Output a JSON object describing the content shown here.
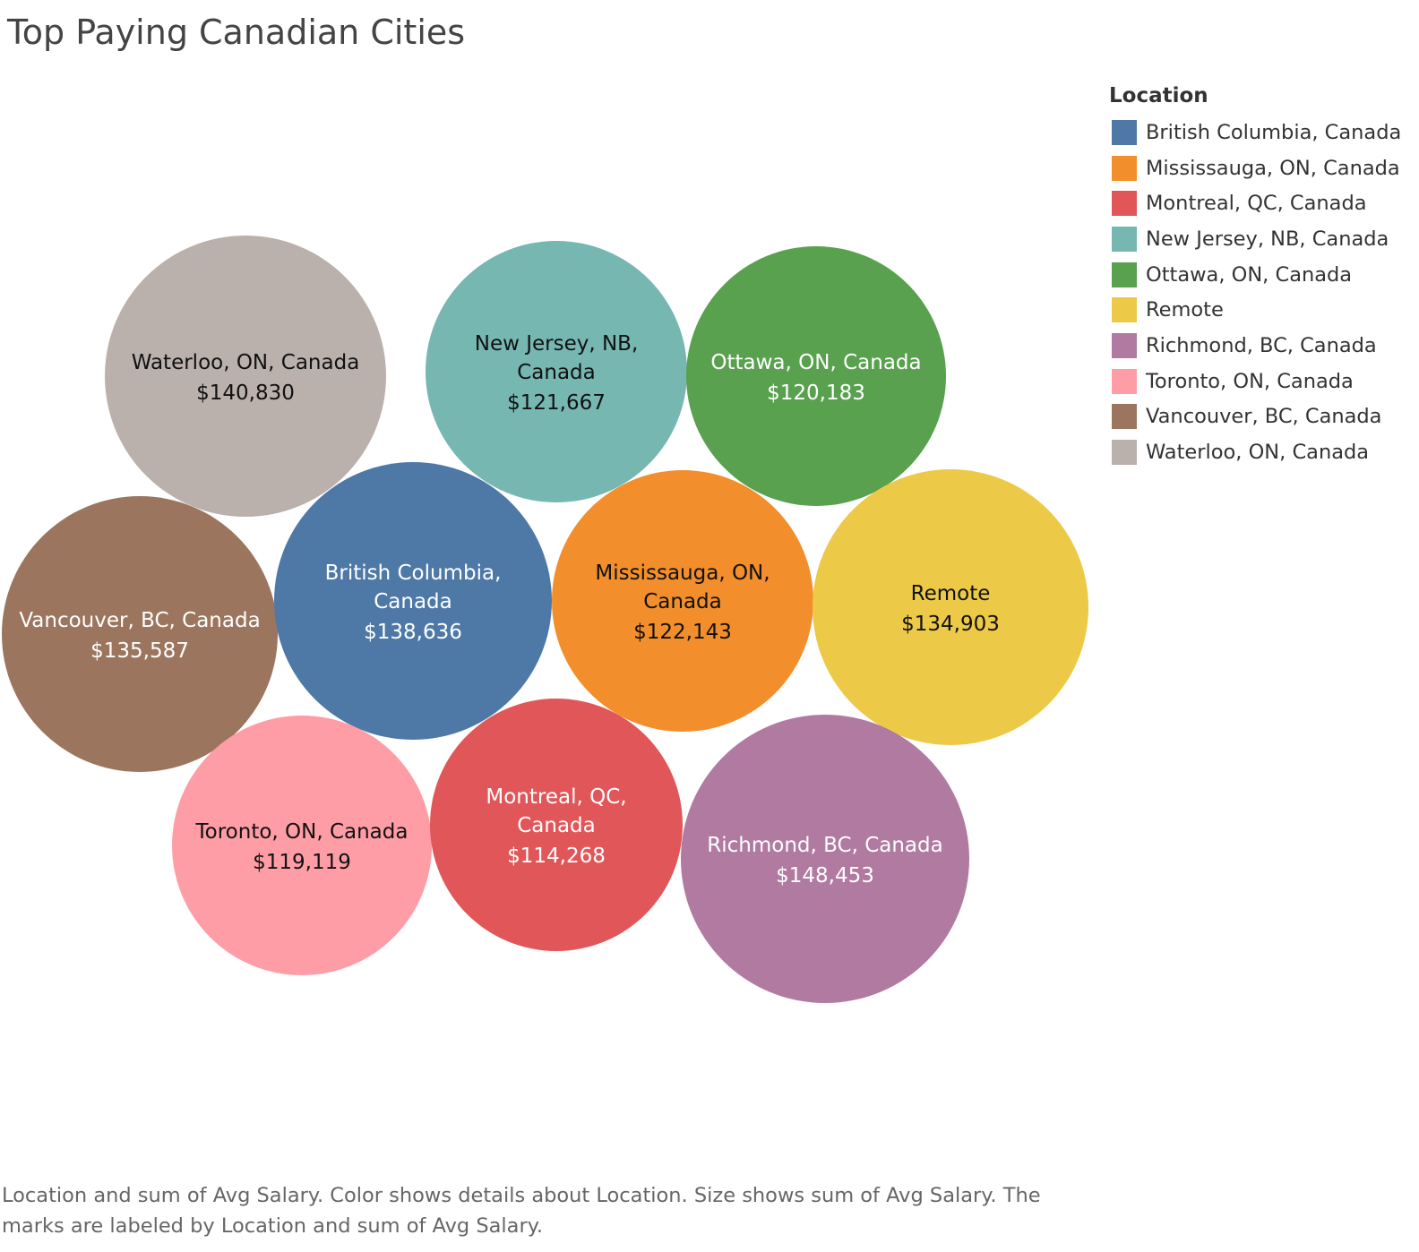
{
  "title": "Top Paying Canadian Cities",
  "legend": {
    "title": "Location",
    "items": [
      {
        "label": "British Columbia, Canada",
        "color": "#4e79a7"
      },
      {
        "label": "Mississauga, ON, Canada",
        "color": "#f28e2b"
      },
      {
        "label": "Montreal, QC, Canada",
        "color": "#e15759"
      },
      {
        "label": "New Jersey, NB, Canada",
        "color": "#76b7b2"
      },
      {
        "label": "Ottawa, ON, Canada",
        "color": "#59a14f"
      },
      {
        "label": "Remote",
        "color": "#edc948"
      },
      {
        "label": "Richmond, BC, Canada",
        "color": "#b07aa1"
      },
      {
        "label": "Toronto, ON, Canada",
        "color": "#ff9da7"
      },
      {
        "label": "Vancouver, BC, Canada",
        "color": "#9c755f"
      },
      {
        "label": "Waterloo, ON, Canada",
        "color": "#bab0ac"
      }
    ]
  },
  "chart_data": {
    "type": "bubble",
    "title": "Top Paying Canadian Cities",
    "size_field": "sum of Avg Salary",
    "color_field": "Location",
    "points": [
      {
        "location": "Waterloo, ON, Canada",
        "label_lines": [
          "Waterloo, ON, Canada"
        ],
        "value": 140830,
        "value_label": "$140,830",
        "color": "#bab0ac",
        "text_color": "#111111"
      },
      {
        "location": "New Jersey, NB, Canada",
        "label_lines": [
          "New Jersey, NB,",
          "Canada"
        ],
        "value": 121667,
        "value_label": "$121,667",
        "color": "#76b7b2",
        "text_color": "#111111"
      },
      {
        "location": "Ottawa, ON, Canada",
        "label_lines": [
          "Ottawa, ON, Canada"
        ],
        "value": 120183,
        "value_label": "$120,183",
        "color": "#59a14f",
        "text_color": "#ffffff"
      },
      {
        "location": "Vancouver, BC, Canada",
        "label_lines": [
          "Vancouver, BC, Canada"
        ],
        "value": 135587,
        "value_label": "$135,587",
        "color": "#9c755f",
        "text_color": "#ffffff"
      },
      {
        "location": "British Columbia, Canada",
        "label_lines": [
          "British Columbia,",
          "Canada"
        ],
        "value": 138636,
        "value_label": "$138,636",
        "color": "#4e79a7",
        "text_color": "#ffffff"
      },
      {
        "location": "Mississauga, ON, Canada",
        "label_lines": [
          "Mississauga, ON,",
          "Canada"
        ],
        "value": 122143,
        "value_label": "$122,143",
        "color": "#f28e2b",
        "text_color": "#111111"
      },
      {
        "location": "Remote",
        "label_lines": [
          "Remote"
        ],
        "value": 134903,
        "value_label": "$134,903",
        "color": "#edc948",
        "text_color": "#111111"
      },
      {
        "location": "Toronto, ON, Canada",
        "label_lines": [
          "Toronto, ON, Canada"
        ],
        "value": 119119,
        "value_label": "$119,119",
        "color": "#ff9da7",
        "text_color": "#111111"
      },
      {
        "location": "Montreal, QC, Canada",
        "label_lines": [
          "Montreal, QC,",
          "Canada"
        ],
        "value": 114268,
        "value_label": "$114,268",
        "color": "#e15759",
        "text_color": "#ffffff"
      },
      {
        "location": "Richmond, BC, Canada",
        "label_lines": [
          "Richmond, BC, Canada"
        ],
        "value": 148453,
        "value_label": "$148,453",
        "color": "#b07aa1",
        "text_color": "#ffffff"
      }
    ]
  },
  "caption": "Location and sum of Avg Salary.  Color shows details about Location.  Size shows sum of Avg Salary.  The marks are labeled by Location and sum of Avg Salary."
}
